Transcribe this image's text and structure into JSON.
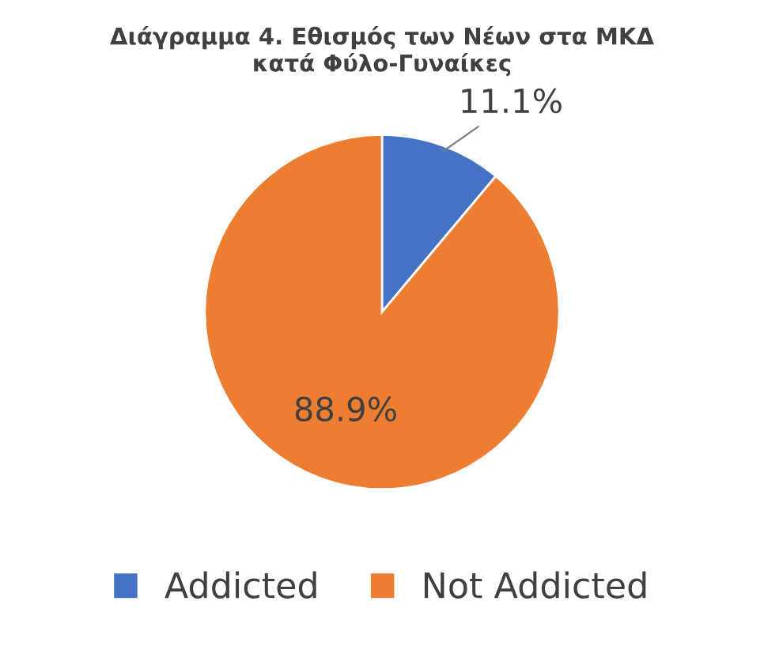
{
  "chart_data": {
    "type": "pie",
    "title": "Διάγραμμα 4. Εθισμός των Νέων στα ΜΚΔ\nκατά Φύλο-Γυναίκες",
    "categories": [
      "Addicted",
      "Not Addicted"
    ],
    "values": [
      11.1,
      88.9
    ],
    "colors": [
      "#4472c4",
      "#ed7d31"
    ],
    "value_labels": [
      "11.1%",
      "88.9%"
    ],
    "legend": "bottom"
  }
}
